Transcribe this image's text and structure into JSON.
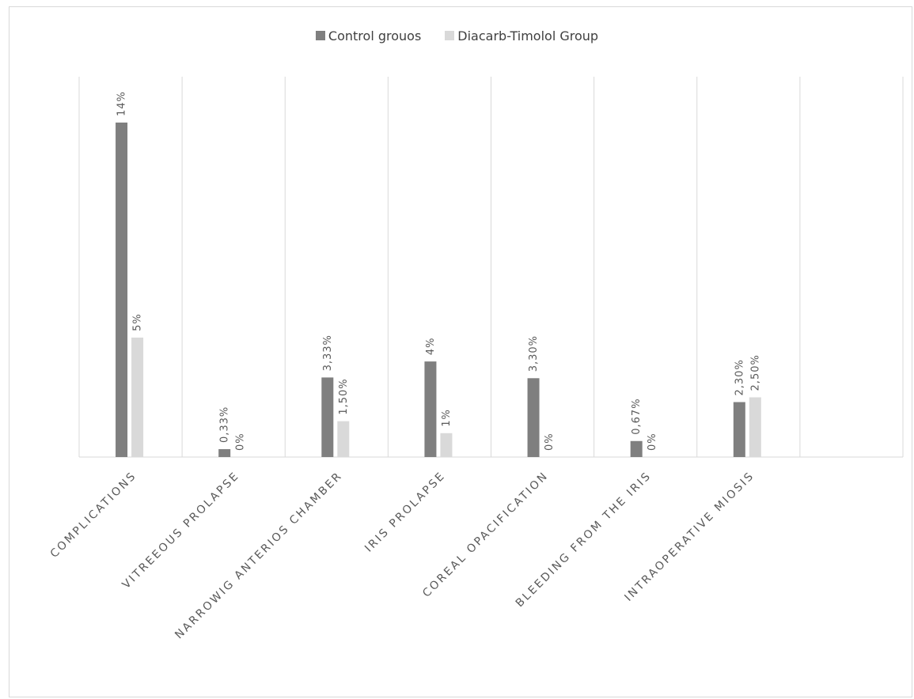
{
  "chart_data": {
    "type": "bar",
    "title": "",
    "xlabel": "",
    "ylabel": "",
    "ylim": [
      0,
      16
    ],
    "grid": "vertical-category-separators",
    "legend_placement": "top-center",
    "categories": [
      "COMPLICATIONS",
      "VITREEOUS PROLAPSE",
      "NARROWIG ANTERIOS CHAMBER",
      "IRIS PROLAPSE",
      "COREAL OPACIFICATION",
      "BLEEDING FROM THE IRIS",
      "INTRAOPERATIVE MIOSIS",
      ""
    ],
    "series": [
      {
        "name": "Control grouos",
        "color": "#7f7f7f",
        "values": [
          14,
          0.33,
          3.33,
          4,
          3.3,
          0.67,
          2.3,
          null
        ],
        "labels": [
          "14%",
          "0,33%",
          "3,33%",
          "4%",
          "3,30%",
          "0,67%",
          "2,30%",
          ""
        ]
      },
      {
        "name": "Diacarb-Timolol Group",
        "color": "#d9d9d9",
        "values": [
          5,
          0,
          1.5,
          1,
          0,
          0,
          2.5,
          null
        ],
        "labels": [
          "5%",
          "0%",
          "1,50%",
          "1%",
          "0%",
          "0%",
          "2,50%",
          ""
        ]
      }
    ]
  }
}
